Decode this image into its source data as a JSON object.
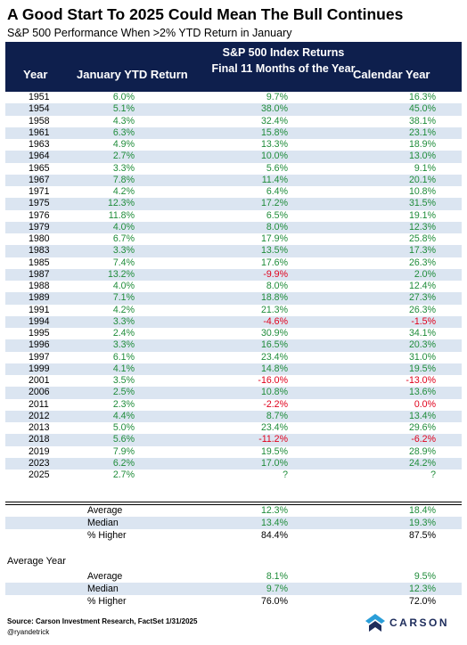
{
  "title": "A Good Start To 2025 Could Mean The Bull Continues",
  "subtitle": "S&P 500 Performance When >2% YTD Return in January",
  "header": {
    "group": "S&P 500 Index Returns",
    "year": "Year",
    "jan": "January YTD Return",
    "final": "Final 11 Months of the Year",
    "cal": "Calendar Year"
  },
  "chart_data": {
    "type": "table",
    "columns": [
      "Year",
      "January YTD Return",
      "Final 11 Months of the Year",
      "Calendar Year"
    ],
    "rows": [
      [
        "1951",
        "6.0%",
        "9.7%",
        "16.3%"
      ],
      [
        "1954",
        "5.1%",
        "38.0%",
        "45.0%"
      ],
      [
        "1958",
        "4.3%",
        "32.4%",
        "38.1%"
      ],
      [
        "1961",
        "6.3%",
        "15.8%",
        "23.1%"
      ],
      [
        "1963",
        "4.9%",
        "13.3%",
        "18.9%"
      ],
      [
        "1964",
        "2.7%",
        "10.0%",
        "13.0%"
      ],
      [
        "1965",
        "3.3%",
        "5.6%",
        "9.1%"
      ],
      [
        "1967",
        "7.8%",
        "11.4%",
        "20.1%"
      ],
      [
        "1971",
        "4.2%",
        "6.4%",
        "10.8%"
      ],
      [
        "1975",
        "12.3%",
        "17.2%",
        "31.5%"
      ],
      [
        "1976",
        "11.8%",
        "6.5%",
        "19.1%"
      ],
      [
        "1979",
        "4.0%",
        "8.0%",
        "12.3%"
      ],
      [
        "1980",
        "6.7%",
        "17.9%",
        "25.8%"
      ],
      [
        "1983",
        "3.3%",
        "13.5%",
        "17.3%"
      ],
      [
        "1985",
        "7.4%",
        "17.6%",
        "26.3%"
      ],
      [
        "1987",
        "13.2%",
        "-9.9%",
        "2.0%"
      ],
      [
        "1988",
        "4.0%",
        "8.0%",
        "12.4%"
      ],
      [
        "1989",
        "7.1%",
        "18.8%",
        "27.3%"
      ],
      [
        "1991",
        "4.2%",
        "21.3%",
        "26.3%"
      ],
      [
        "1994",
        "3.3%",
        "-4.6%",
        "-1.5%"
      ],
      [
        "1995",
        "2.4%",
        "30.9%",
        "34.1%"
      ],
      [
        "1996",
        "3.3%",
        "16.5%",
        "20.3%"
      ],
      [
        "1997",
        "6.1%",
        "23.4%",
        "31.0%"
      ],
      [
        "1999",
        "4.1%",
        "14.8%",
        "19.5%"
      ],
      [
        "2001",
        "3.5%",
        "-16.0%",
        "-13.0%"
      ],
      [
        "2006",
        "2.5%",
        "10.8%",
        "13.6%"
      ],
      [
        "2011",
        "2.3%",
        "-2.2%",
        "0.0%"
      ],
      [
        "2012",
        "4.4%",
        "8.7%",
        "13.4%"
      ],
      [
        "2013",
        "5.0%",
        "23.4%",
        "29.6%"
      ],
      [
        "2018",
        "5.6%",
        "-11.2%",
        "-6.2%"
      ],
      [
        "2019",
        "7.9%",
        "19.5%",
        "28.9%"
      ],
      [
        "2023",
        "6.2%",
        "17.0%",
        "24.2%"
      ],
      [
        "2025",
        "2.7%",
        "?",
        "?"
      ]
    ],
    "summary": [
      {
        "label": "Average",
        "final": "12.3%",
        "cal": "18.4%"
      },
      {
        "label": "Median",
        "final": "13.4%",
        "cal": "19.3%"
      },
      {
        "label": "% Higher",
        "final": "84.4%",
        "cal": "87.5%"
      }
    ],
    "average_year_label": "Average Year",
    "average_year": [
      {
        "label": "Average",
        "final": "8.1%",
        "cal": "9.5%"
      },
      {
        "label": "Median",
        "final": "9.7%",
        "cal": "12.3%"
      },
      {
        "label": "% Higher",
        "final": "76.0%",
        "cal": "72.0%"
      }
    ]
  },
  "colors": {
    "header_bg": "#0e1f4d",
    "stripe": "#dbe5f1",
    "positive": "#1f8c3a",
    "negative": "#e0001b"
  },
  "footer": {
    "source": "Source: Carson Investment Research, FactSet 1/31/2025",
    "handle": "@ryandetrick",
    "logo_text": "CARSON"
  }
}
